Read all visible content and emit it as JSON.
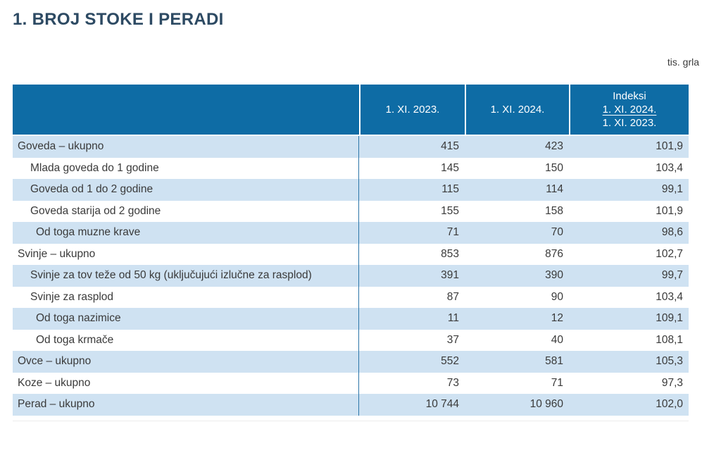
{
  "page": {
    "title": "1. BROJ STOKE I PERADI",
    "unit_label": "tis. grla"
  },
  "colors": {
    "header_bg": "#0e6ca5",
    "row_shaded_bg": "#cfe2f2",
    "title_text": "#2d4a63",
    "header_text": "#ffffff",
    "body_text": "#3a3a3a",
    "column_divider_blue": "#2d76a8"
  },
  "table": {
    "header": {
      "col_label": "",
      "col_2023": "1. XI. 2023.",
      "col_2024": "1. XI. 2024.",
      "index": {
        "title": "Indeksi",
        "numerator": "1. XI. 2024.",
        "denominator": "1. XI. 2023."
      }
    },
    "rows": [
      {
        "label": "Goveda – ukupno",
        "indent": 0,
        "v2023": "415",
        "v2024": "423",
        "index": "101,9"
      },
      {
        "label": "Mlada goveda do 1 godine",
        "indent": 1,
        "v2023": "145",
        "v2024": "150",
        "index": "103,4"
      },
      {
        "label": "Goveda od 1 do 2 godine",
        "indent": 1,
        "v2023": "115",
        "v2024": "114",
        "index": "99,1"
      },
      {
        "label": "Goveda starija od 2 godine",
        "indent": 1,
        "v2023": "155",
        "v2024": "158",
        "index": "101,9"
      },
      {
        "label": "Od toga muzne krave",
        "indent": 2,
        "v2023": "71",
        "v2024": "70",
        "index": "98,6"
      },
      {
        "label": "Svinje – ukupno",
        "indent": 0,
        "v2023": "853",
        "v2024": "876",
        "index": "102,7"
      },
      {
        "label": "Svinje za tov teže od 50 kg (uključujući izlučne za rasplod)",
        "indent": 1,
        "v2023": "391",
        "v2024": "390",
        "index": "99,7"
      },
      {
        "label": "Svinje za rasplod",
        "indent": 1,
        "v2023": "87",
        "v2024": "90",
        "index": "103,4"
      },
      {
        "label": "Od toga nazimice",
        "indent": 2,
        "v2023": "11",
        "v2024": "12",
        "index": "109,1"
      },
      {
        "label": "Od toga krmače",
        "indent": 2,
        "v2023": "37",
        "v2024": "40",
        "index": "108,1"
      },
      {
        "label": "Ovce – ukupno",
        "indent": 0,
        "v2023": "552",
        "v2024": "581",
        "index": "105,3"
      },
      {
        "label": "Koze – ukupno",
        "indent": 0,
        "v2023": "73",
        "v2024": "71",
        "index": "97,3"
      },
      {
        "label": "Perad – ukupno",
        "indent": 0,
        "v2023": "10 744",
        "v2024": "10 960",
        "index": "102,0"
      }
    ]
  }
}
